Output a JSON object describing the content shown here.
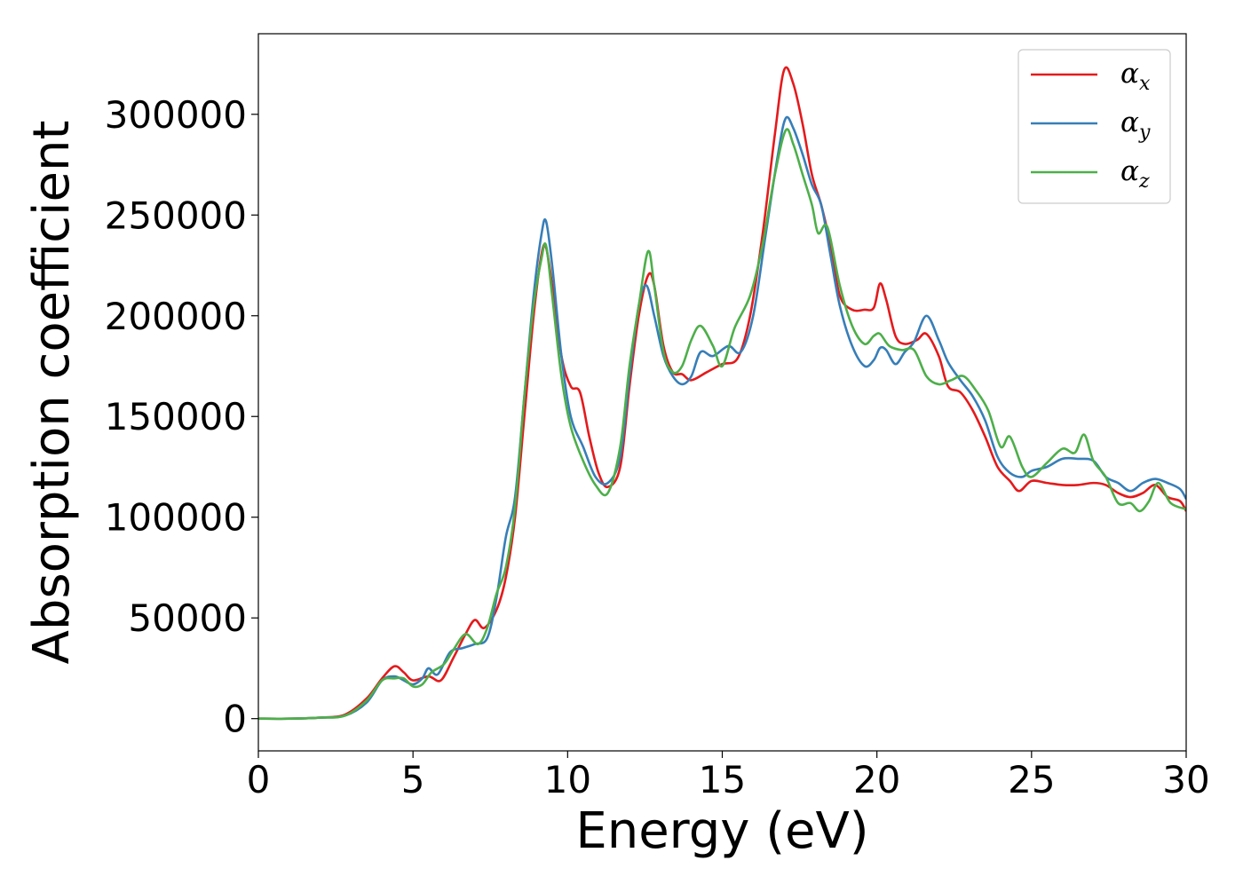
{
  "chart_data": {
    "type": "line",
    "title": "",
    "xlabel": "Energy (eV)",
    "ylabel": "Absorption coefficient",
    "xlim": [
      0,
      30
    ],
    "ylim": [
      -16000,
      340000
    ],
    "x_ticks": [
      0,
      5,
      10,
      15,
      20,
      25,
      30
    ],
    "x_tick_labels": [
      "0",
      "5",
      "10",
      "15",
      "20",
      "25",
      "30"
    ],
    "y_ticks": [
      0,
      50000,
      100000,
      150000,
      200000,
      250000,
      300000
    ],
    "y_tick_labels": [
      "0",
      "50000",
      "100000",
      "150000",
      "200000",
      "250000",
      "300000"
    ],
    "grid": false,
    "legend": {
      "placement": "top-right",
      "entries": [
        {
          "symbol": "α",
          "subscript": "x"
        },
        {
          "symbol": "α",
          "subscript": "y"
        },
        {
          "symbol": "α",
          "subscript": "z"
        }
      ]
    },
    "series": [
      {
        "color": "#e41a1c",
        "points": [
          [
            0,
            0
          ],
          [
            1,
            0
          ],
          [
            2,
            500
          ],
          [
            2.8,
            2000
          ],
          [
            3.5,
            10000
          ],
          [
            4,
            20000
          ],
          [
            4.4,
            26000
          ],
          [
            4.7,
            23000
          ],
          [
            5,
            19000
          ],
          [
            5.5,
            21000
          ],
          [
            5.9,
            19000
          ],
          [
            6.3,
            30000
          ],
          [
            6.7,
            42000
          ],
          [
            7,
            49000
          ],
          [
            7.3,
            45000
          ],
          [
            7.7,
            54000
          ],
          [
            8,
            70000
          ],
          [
            8.3,
            100000
          ],
          [
            8.6,
            150000
          ],
          [
            8.9,
            200000
          ],
          [
            9.15,
            230000
          ],
          [
            9.3,
            234000
          ],
          [
            9.5,
            215000
          ],
          [
            9.8,
            180000
          ],
          [
            10.1,
            165000
          ],
          [
            10.4,
            162000
          ],
          [
            10.7,
            140000
          ],
          [
            11,
            122000
          ],
          [
            11.3,
            115000
          ],
          [
            11.7,
            125000
          ],
          [
            12,
            165000
          ],
          [
            12.3,
            200000
          ],
          [
            12.6,
            220000
          ],
          [
            12.8,
            215000
          ],
          [
            13.1,
            185000
          ],
          [
            13.4,
            172000
          ],
          [
            13.7,
            171000
          ],
          [
            14,
            168000
          ],
          [
            14.5,
            172000
          ],
          [
            15,
            176000
          ],
          [
            15.5,
            179000
          ],
          [
            15.9,
            200000
          ],
          [
            16.3,
            240000
          ],
          [
            16.7,
            290000
          ],
          [
            17,
            322000
          ],
          [
            17.3,
            315000
          ],
          [
            17.6,
            295000
          ],
          [
            17.9,
            270000
          ],
          [
            18.2,
            255000
          ],
          [
            18.5,
            235000
          ],
          [
            18.8,
            210000
          ],
          [
            19.2,
            203000
          ],
          [
            19.6,
            203000
          ],
          [
            19.9,
            204000
          ],
          [
            20.1,
            216000
          ],
          [
            20.3,
            208000
          ],
          [
            20.6,
            190000
          ],
          [
            20.9,
            186000
          ],
          [
            21.3,
            188000
          ],
          [
            21.6,
            191000
          ],
          [
            22,
            180000
          ],
          [
            22.3,
            165000
          ],
          [
            22.7,
            162000
          ],
          [
            23.1,
            153000
          ],
          [
            23.5,
            140000
          ],
          [
            23.9,
            125000
          ],
          [
            24.3,
            118000
          ],
          [
            24.6,
            113000
          ],
          [
            25,
            118000
          ],
          [
            25.5,
            117000
          ],
          [
            26,
            116000
          ],
          [
            26.5,
            116000
          ],
          [
            27,
            117000
          ],
          [
            27.4,
            116000
          ],
          [
            27.8,
            112000
          ],
          [
            28.2,
            110000
          ],
          [
            28.6,
            112000
          ],
          [
            29,
            116000
          ],
          [
            29.4,
            110000
          ],
          [
            29.8,
            108000
          ],
          [
            30,
            103000
          ]
        ]
      },
      {
        "color": "#377eb8",
        "points": [
          [
            0,
            0
          ],
          [
            1,
            0
          ],
          [
            2,
            500
          ],
          [
            2.8,
            1500
          ],
          [
            3.5,
            8000
          ],
          [
            4,
            19000
          ],
          [
            4.4,
            21000
          ],
          [
            4.7,
            19000
          ],
          [
            5,
            17000
          ],
          [
            5.3,
            20000
          ],
          [
            5.5,
            25000
          ],
          [
            5.8,
            22000
          ],
          [
            6.2,
            33000
          ],
          [
            6.6,
            35000
          ],
          [
            7,
            37000
          ],
          [
            7.4,
            40000
          ],
          [
            7.7,
            60000
          ],
          [
            8,
            90000
          ],
          [
            8.3,
            110000
          ],
          [
            8.6,
            160000
          ],
          [
            8.9,
            210000
          ],
          [
            9.15,
            240000
          ],
          [
            9.3,
            247000
          ],
          [
            9.5,
            225000
          ],
          [
            9.8,
            180000
          ],
          [
            10.1,
            150000
          ],
          [
            10.5,
            135000
          ],
          [
            10.9,
            120000
          ],
          [
            11.3,
            117000
          ],
          [
            11.7,
            130000
          ],
          [
            12,
            170000
          ],
          [
            12.3,
            205000
          ],
          [
            12.55,
            215000
          ],
          [
            12.8,
            200000
          ],
          [
            13.1,
            180000
          ],
          [
            13.4,
            170000
          ],
          [
            13.7,
            166000
          ],
          [
            14,
            170000
          ],
          [
            14.3,
            182000
          ],
          [
            14.7,
            180000
          ],
          [
            15.2,
            185000
          ],
          [
            15.6,
            182000
          ],
          [
            16,
            200000
          ],
          [
            16.4,
            240000
          ],
          [
            16.8,
            280000
          ],
          [
            17.05,
            298000
          ],
          [
            17.3,
            293000
          ],
          [
            17.6,
            280000
          ],
          [
            17.9,
            265000
          ],
          [
            18.2,
            255000
          ],
          [
            18.5,
            230000
          ],
          [
            18.8,
            205000
          ],
          [
            19.2,
            185000
          ],
          [
            19.6,
            175000
          ],
          [
            19.9,
            178000
          ],
          [
            20.1,
            184000
          ],
          [
            20.3,
            183000
          ],
          [
            20.6,
            176000
          ],
          [
            20.9,
            182000
          ],
          [
            21.2,
            187000
          ],
          [
            21.6,
            200000
          ],
          [
            22,
            188000
          ],
          [
            22.3,
            177000
          ],
          [
            22.7,
            168000
          ],
          [
            23.1,
            160000
          ],
          [
            23.5,
            148000
          ],
          [
            23.9,
            130000
          ],
          [
            24.3,
            122000
          ],
          [
            24.7,
            120000
          ],
          [
            25,
            123000
          ],
          [
            25.5,
            125000
          ],
          [
            26,
            129000
          ],
          [
            26.5,
            129000
          ],
          [
            27,
            128000
          ],
          [
            27.4,
            120000
          ],
          [
            27.8,
            117000
          ],
          [
            28.2,
            113000
          ],
          [
            28.6,
            117000
          ],
          [
            29,
            119000
          ],
          [
            29.4,
            117000
          ],
          [
            29.8,
            114000
          ],
          [
            30,
            109000
          ]
        ]
      },
      {
        "color": "#4daf4a",
        "points": [
          [
            0,
            0
          ],
          [
            1,
            0
          ],
          [
            2,
            500
          ],
          [
            2.8,
            1500
          ],
          [
            3.5,
            9000
          ],
          [
            4,
            19000
          ],
          [
            4.4,
            20000
          ],
          [
            4.7,
            20000
          ],
          [
            5,
            16000
          ],
          [
            5.3,
            17000
          ],
          [
            5.6,
            23000
          ],
          [
            6,
            27000
          ],
          [
            6.3,
            34000
          ],
          [
            6.7,
            42000
          ],
          [
            7.1,
            37000
          ],
          [
            7.4,
            45000
          ],
          [
            7.7,
            62000
          ],
          [
            8,
            75000
          ],
          [
            8.3,
            105000
          ],
          [
            8.6,
            160000
          ],
          [
            8.9,
            205000
          ],
          [
            9.15,
            228000
          ],
          [
            9.3,
            235000
          ],
          [
            9.5,
            210000
          ],
          [
            9.8,
            170000
          ],
          [
            10.1,
            145000
          ],
          [
            10.5,
            128000
          ],
          [
            10.9,
            116000
          ],
          [
            11.3,
            112000
          ],
          [
            11.7,
            135000
          ],
          [
            12,
            175000
          ],
          [
            12.3,
            205000
          ],
          [
            12.6,
            232000
          ],
          [
            12.8,
            215000
          ],
          [
            13.1,
            182000
          ],
          [
            13.4,
            172000
          ],
          [
            13.7,
            175000
          ],
          [
            14,
            188000
          ],
          [
            14.3,
            195000
          ],
          [
            14.7,
            185000
          ],
          [
            15,
            175000
          ],
          [
            15.4,
            194000
          ],
          [
            15.9,
            210000
          ],
          [
            16.3,
            235000
          ],
          [
            16.7,
            270000
          ],
          [
            17.05,
            292000
          ],
          [
            17.3,
            285000
          ],
          [
            17.6,
            270000
          ],
          [
            17.9,
            255000
          ],
          [
            18.1,
            241000
          ],
          [
            18.4,
            244000
          ],
          [
            18.8,
            215000
          ],
          [
            19.2,
            195000
          ],
          [
            19.6,
            186000
          ],
          [
            19.9,
            190000
          ],
          [
            20.1,
            191000
          ],
          [
            20.4,
            185000
          ],
          [
            20.8,
            183000
          ],
          [
            21.2,
            183000
          ],
          [
            21.6,
            170000
          ],
          [
            22,
            166000
          ],
          [
            22.4,
            168000
          ],
          [
            22.8,
            170000
          ],
          [
            23.2,
            163000
          ],
          [
            23.6,
            153000
          ],
          [
            24,
            135000
          ],
          [
            24.3,
            140000
          ],
          [
            24.7,
            125000
          ],
          [
            25,
            120000
          ],
          [
            25.5,
            127000
          ],
          [
            26,
            134000
          ],
          [
            26.4,
            132000
          ],
          [
            26.7,
            141000
          ],
          [
            27,
            128000
          ],
          [
            27.4,
            120000
          ],
          [
            27.8,
            107000
          ],
          [
            28.2,
            107000
          ],
          [
            28.5,
            103000
          ],
          [
            28.8,
            108000
          ],
          [
            29.1,
            117000
          ],
          [
            29.5,
            107000
          ],
          [
            30,
            104000
          ]
        ]
      }
    ]
  }
}
